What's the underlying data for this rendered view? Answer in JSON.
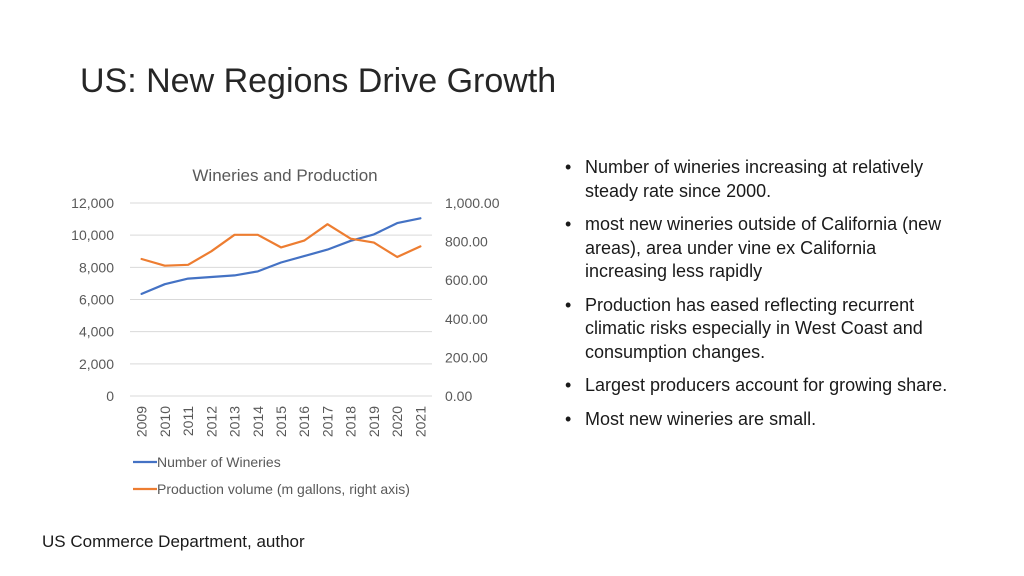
{
  "slide": {
    "title": "US: New Regions Drive Growth",
    "bullets": [
      "Number of wineries increasing at relatively steady rate since 2000.",
      "most new wineries outside of California (new areas), area under vine ex California increasing less rapidly",
      "Production has eased reflecting recurrent climatic risks especially in West Coast and consumption changes.",
      "Largest producers account for growing share.",
      "Most new wineries are small."
    ],
    "source": "US Commerce Department, author"
  },
  "colors": {
    "wineries": "#4472C4",
    "production": "#ED7D31",
    "gridline": "#D9D9D9",
    "axis_text": "#595959"
  },
  "chart_data": {
    "type": "line",
    "title": "Wineries and Production",
    "categories": [
      "2009",
      "2010",
      "2011",
      "2012",
      "2013",
      "2014",
      "2015",
      "2016",
      "2017",
      "2018",
      "2019",
      "2020",
      "2021"
    ],
    "series": [
      {
        "name": "Number of Wineries",
        "axis": "left",
        "values": [
          6350,
          6950,
          7300,
          7400,
          7500,
          7750,
          8300,
          8700,
          9100,
          9650,
          10050,
          10750,
          11050
        ]
      },
      {
        "name": "Production volume (m gallons, right axis)",
        "axis": "right",
        "values": [
          710,
          675,
          680,
          750,
          835,
          835,
          770,
          805,
          890,
          815,
          795,
          720,
          775
        ]
      }
    ],
    "y_left": {
      "min": 0,
      "max": 12000,
      "ticks": [
        "0",
        "2,000",
        "4,000",
        "6,000",
        "8,000",
        "10,000",
        "12,000"
      ]
    },
    "y_right": {
      "min": 0,
      "max": 1000,
      "ticks": [
        "0.00",
        "200.00",
        "400.00",
        "600.00",
        "800.00",
        "1,000.00"
      ]
    },
    "legend_position": "bottom",
    "grid": true
  }
}
